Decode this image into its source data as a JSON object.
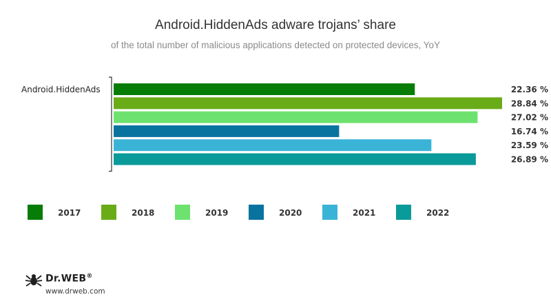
{
  "chart_data": {
    "type": "bar",
    "orientation": "horizontal",
    "title": "Android.HiddenAds adware trojans’ share",
    "subtitle": "of the total number of malicious applications detected on protected devices, YoY",
    "categories": [
      "Android.HiddenAds"
    ],
    "series": [
      {
        "name": "2017",
        "values": [
          22.36
        ],
        "label": "22.36 %",
        "color": "#077d07"
      },
      {
        "name": "2018",
        "values": [
          28.84
        ],
        "label": "28.84 %",
        "color": "#6aab18"
      },
      {
        "name": "2019",
        "values": [
          27.02
        ],
        "label": "27.02 %",
        "color": "#6ee26e"
      },
      {
        "name": "2020",
        "values": [
          16.74
        ],
        "label": "16.74 %",
        "color": "#08739f"
      },
      {
        "name": "2021",
        "values": [
          23.59
        ],
        "label": "23.59 %",
        "color": "#3ab4d6"
      },
      {
        "name": "2022",
        "values": [
          26.89
        ],
        "label": "26.89 %",
        "color": "#0a9a9a"
      }
    ],
    "xlim": [
      0,
      28.84
    ],
    "grid": false,
    "legend_position": "bottom"
  },
  "branding": {
    "logo_name": "Dr.WEB",
    "registered_mark": "®",
    "url": "www.drweb.com"
  }
}
